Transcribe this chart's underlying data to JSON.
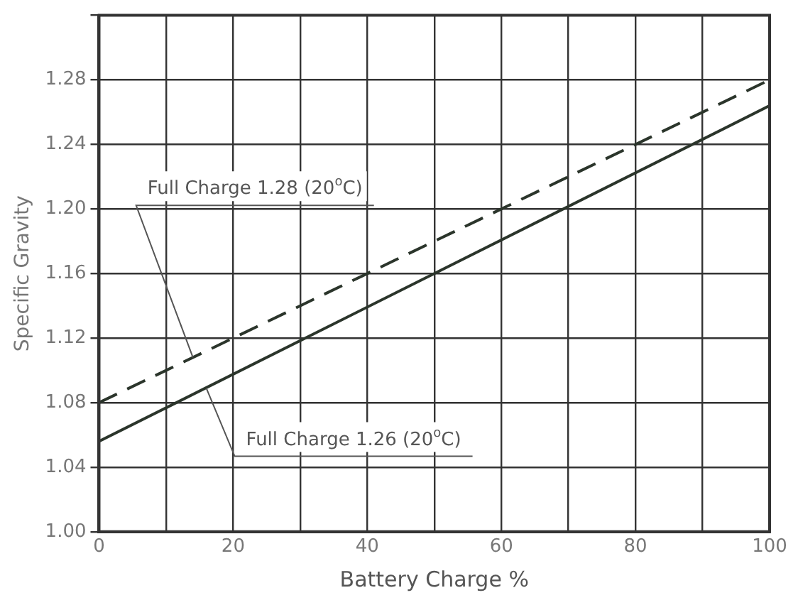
{
  "chart_data": {
    "type": "line",
    "xlabel": "Battery Charge %",
    "ylabel": "Specific Gravity",
    "x": [
      0,
      100
    ],
    "series": [
      {
        "color": "#2b352b",
        "values": [
          1.08,
          1.28
        ],
        "line_style": "dashed"
      },
      {
        "color": "#2b352b",
        "values": [
          1.056,
          1.264
        ],
        "line_style": "solid"
      }
    ],
    "xlim": [
      0,
      100
    ],
    "xticks": [
      0,
      {
        "value": 10,
        "label": null
      },
      20,
      {
        "value": 30,
        "label": null
      },
      40,
      {
        "value": 50,
        "label": null
      },
      60,
      {
        "value": 70,
        "label": null
      },
      80,
      {
        "value": 90,
        "label": null
      },
      100
    ],
    "ylim": [
      1.0,
      1.32
    ],
    "yticks": [
      {
        "value": 1.0,
        "label": "1.00"
      },
      {
        "value": 1.04,
        "label": "1.04"
      },
      {
        "value": 1.08,
        "label": "1.08"
      },
      {
        "value": 1.12,
        "label": "1.12"
      },
      {
        "value": 1.16,
        "label": "1.16"
      },
      {
        "value": 1.2,
        "label": "1.20"
      },
      {
        "value": 1.24,
        "label": "1.24"
      },
      {
        "value": 1.28,
        "label": "1.28"
      },
      {
        "value": 1.32,
        "label": null
      }
    ],
    "annotations": [
      {
        "text": "Full Charge 1.28 (20$^{o}$C)",
        "x": 14,
        "y": 1.108
      },
      {
        "text": "Full Charge 1.26 (20$^{o}$C)",
        "x": 16,
        "y": 1.089
      }
    ],
    "grid": true,
    "legend": false,
    "marker": "none"
  }
}
